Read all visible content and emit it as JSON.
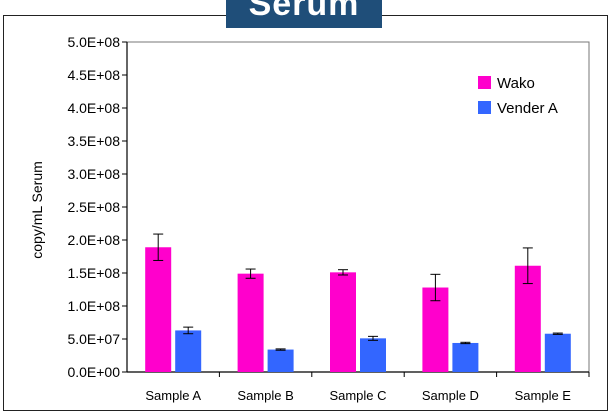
{
  "chart_data": {
    "type": "bar",
    "title": "Serum",
    "ylabel": "copy/mL Serum",
    "xlabel": "",
    "categories": [
      "Sample A",
      "Sample B",
      "Sample C",
      "Sample D",
      "Sample E"
    ],
    "ylim": [
      0,
      500000000
    ],
    "yticks": [
      "0.0E+00",
      "5.0E+07",
      "1.0E+08",
      "1.5E+08",
      "2.0E+08",
      "2.5E+08",
      "3.0E+08",
      "3.5E+08",
      "4.0E+08",
      "4.5E+08",
      "5.0E+08"
    ],
    "series": [
      {
        "name": "Wako",
        "color": "#ff00cc",
        "values": [
          189000000,
          149000000,
          151000000,
          128000000,
          161000000
        ],
        "errors": [
          20000000,
          7000000,
          4000000,
          20000000,
          27000000
        ]
      },
      {
        "name": "Vender A",
        "color": "#3366ff",
        "values": [
          63000000,
          34000000,
          51000000,
          44000000,
          58000000
        ],
        "errors": [
          5000000,
          1000000,
          3000000,
          1000000,
          1000000
        ]
      }
    ],
    "legend": "top-right",
    "grid": false
  }
}
